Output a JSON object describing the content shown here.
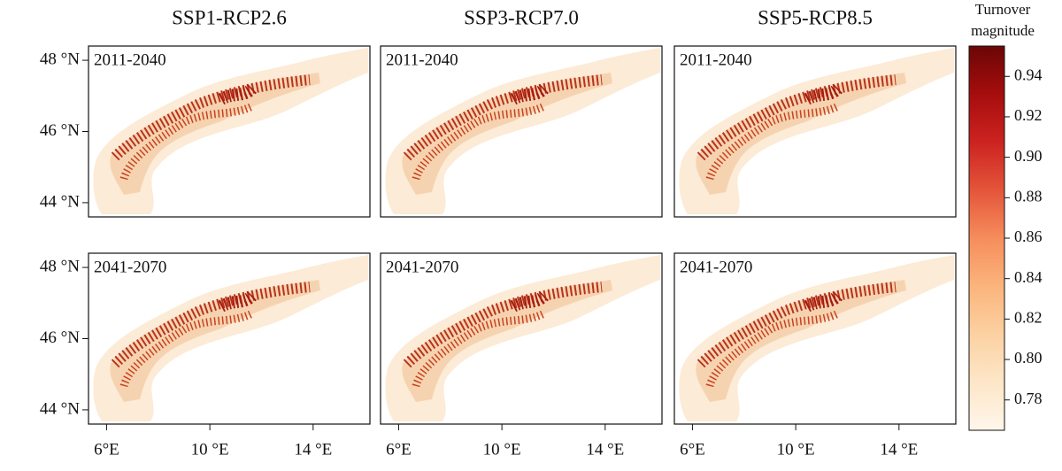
{
  "columns": [
    "SSP1-RCP2.6",
    "SSP3-RCP7.0",
    "SSP5-RCP8.5"
  ],
  "periods": [
    "2011-2040",
    "2041-2070"
  ],
  "map": {
    "xlim": [
      5.3,
      16.2
    ],
    "ylim": [
      43.6,
      48.4
    ],
    "xticks": [
      {
        "value": 6,
        "label": "6°E"
      },
      {
        "value": 10,
        "label": "10 °E"
      },
      {
        "value": 14,
        "label": "14 °E"
      }
    ],
    "yticks": [
      {
        "value": 44,
        "label": "44 °N"
      },
      {
        "value": 46,
        "label": "46 °N"
      },
      {
        "value": 48,
        "label": "48 °N"
      }
    ]
  },
  "colorbar": {
    "title": [
      "Turnover",
      "magnitude"
    ],
    "lim": [
      0.765,
      0.955
    ],
    "ticks": [
      {
        "value": 0.78,
        "label": "0.78"
      },
      {
        "value": 0.8,
        "label": "0.80"
      },
      {
        "value": 0.82,
        "label": "0.82"
      },
      {
        "value": 0.84,
        "label": "0.84"
      },
      {
        "value": 0.86,
        "label": "0.86"
      },
      {
        "value": 0.88,
        "label": "0.88"
      },
      {
        "value": 0.9,
        "label": "0.90"
      },
      {
        "value": 0.92,
        "label": "0.92"
      },
      {
        "value": 0.94,
        "label": "0.94"
      }
    ],
    "colors": [
      "#fff6ea",
      "#fde6c8",
      "#fcd1a2",
      "#fbb47c",
      "#f68d5c",
      "#e4553a",
      "#cc2320",
      "#a60d0d",
      "#6b0606"
    ]
  }
}
